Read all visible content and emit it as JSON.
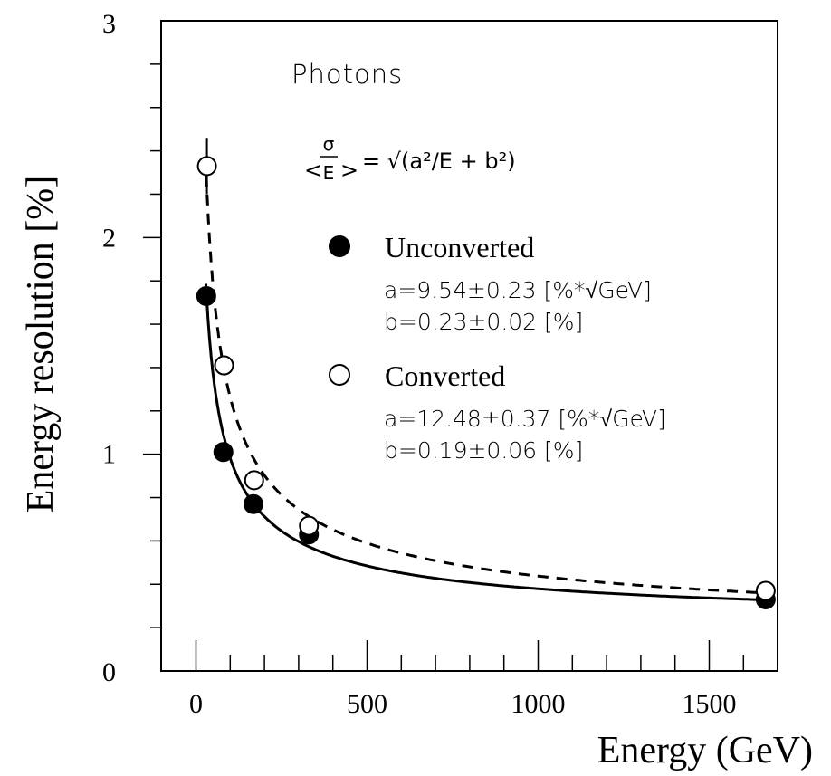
{
  "chart_data": {
    "type": "scatter",
    "title": "Photons",
    "formula": {
      "lhs_numerator": "σ",
      "lhs_denominator": "E",
      "rhs": "= √(a²/E + b²)"
    },
    "xlabel": "Energy (GeV)",
    "ylabel": "Energy resolution [%]",
    "xlim": [
      -100,
      1750
    ],
    "ylim": [
      0,
      3
    ],
    "x_ticks": [
      "0",
      "500",
      "1000",
      "1500"
    ],
    "y_ticks": [
      "0",
      "1",
      "2",
      "3"
    ],
    "x_tick_values": [
      0,
      500,
      1000,
      1500
    ],
    "y_tick_values": [
      0,
      1,
      2,
      3
    ],
    "grid": false,
    "series": [
      {
        "name": "Unconverted",
        "marker": "filled-circle",
        "line": "solid",
        "fit": {
          "a": 9.54,
          "b": 0.23
        },
        "fit_label_a": "a=9.54±0.23 [%*√GeV]",
        "fit_label_b": "b=0.23±0.02 [%]",
        "points": [
          {
            "x": 30,
            "y": 1.73
          },
          {
            "x": 80,
            "y": 1.01
          },
          {
            "x": 168,
            "y": 0.77
          },
          {
            "x": 330,
            "y": 0.63
          },
          {
            "x": 1665,
            "y": 0.33
          }
        ]
      },
      {
        "name": "Converted",
        "marker": "open-circle",
        "line": "dashed",
        "fit": {
          "a": 12.48,
          "b": 0.19
        },
        "fit_label_a": "a=12.48±0.37 [%*√GeV]",
        "fit_label_b": "b=0.19±0.06 [%]",
        "points": [
          {
            "x": 32,
            "y": 2.33,
            "err": 0.13
          },
          {
            "x": 82,
            "y": 1.41
          },
          {
            "x": 170,
            "y": 0.88
          },
          {
            "x": 330,
            "y": 0.67
          },
          {
            "x": 1665,
            "y": 0.37
          }
        ]
      }
    ],
    "colors": {
      "axis": "#000000",
      "background": "#ffffff"
    }
  }
}
